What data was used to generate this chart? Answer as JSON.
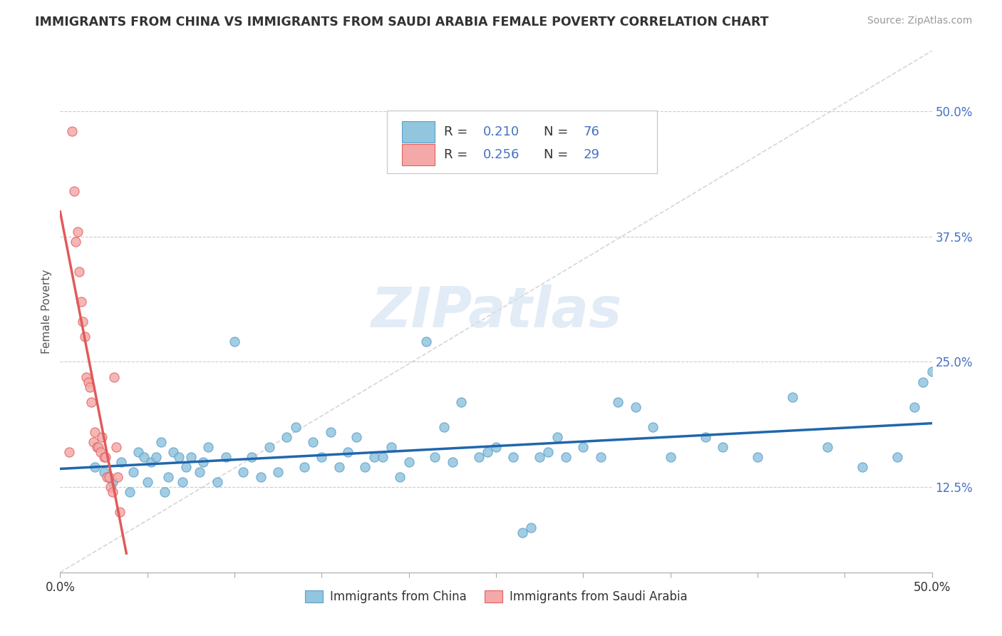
{
  "title": "IMMIGRANTS FROM CHINA VS IMMIGRANTS FROM SAUDI ARABIA FEMALE POVERTY CORRELATION CHART",
  "source": "Source: ZipAtlas.com",
  "ylabel": "Female Poverty",
  "y_tick_labels": [
    "12.5%",
    "25.0%",
    "37.5%",
    "50.0%"
  ],
  "y_tick_values": [
    0.125,
    0.25,
    0.375,
    0.5
  ],
  "x_min": 0.0,
  "x_max": 0.5,
  "y_min": 0.04,
  "y_max": 0.56,
  "china_color": "#92c5de",
  "china_edge_color": "#5a9ec9",
  "saudi_color": "#f4a9a8",
  "saudi_edge_color": "#e06060",
  "trend_china_color": "#2166ac",
  "trend_saudi_color": "#e05a5a",
  "ref_line_color": "#cccccc",
  "R_china": 0.21,
  "N_china": 76,
  "R_saudi": 0.256,
  "N_saudi": 29,
  "legend_label_china": "Immigrants from China",
  "legend_label_saudi": "Immigrants from Saudi Arabia",
  "watermark": "ZIPatlas",
  "china_x": [
    0.02,
    0.025,
    0.03,
    0.035,
    0.04,
    0.042,
    0.045,
    0.048,
    0.05,
    0.052,
    0.055,
    0.058,
    0.06,
    0.062,
    0.065,
    0.068,
    0.07,
    0.072,
    0.075,
    0.08,
    0.082,
    0.085,
    0.09,
    0.095,
    0.1,
    0.105,
    0.11,
    0.115,
    0.12,
    0.125,
    0.13,
    0.135,
    0.14,
    0.145,
    0.15,
    0.155,
    0.16,
    0.165,
    0.17,
    0.175,
    0.18,
    0.185,
    0.19,
    0.195,
    0.2,
    0.21,
    0.215,
    0.22,
    0.225,
    0.23,
    0.24,
    0.245,
    0.25,
    0.26,
    0.265,
    0.27,
    0.275,
    0.28,
    0.285,
    0.29,
    0.3,
    0.31,
    0.32,
    0.33,
    0.34,
    0.35,
    0.37,
    0.38,
    0.4,
    0.42,
    0.44,
    0.46,
    0.48,
    0.49,
    0.495,
    0.5
  ],
  "china_y": [
    0.145,
    0.14,
    0.13,
    0.15,
    0.12,
    0.14,
    0.16,
    0.155,
    0.13,
    0.15,
    0.155,
    0.17,
    0.12,
    0.135,
    0.16,
    0.155,
    0.13,
    0.145,
    0.155,
    0.14,
    0.15,
    0.165,
    0.13,
    0.155,
    0.27,
    0.14,
    0.155,
    0.135,
    0.165,
    0.14,
    0.175,
    0.185,
    0.145,
    0.17,
    0.155,
    0.18,
    0.145,
    0.16,
    0.175,
    0.145,
    0.155,
    0.155,
    0.165,
    0.135,
    0.15,
    0.27,
    0.155,
    0.185,
    0.15,
    0.21,
    0.155,
    0.16,
    0.165,
    0.155,
    0.08,
    0.085,
    0.155,
    0.16,
    0.175,
    0.155,
    0.165,
    0.155,
    0.21,
    0.205,
    0.185,
    0.155,
    0.175,
    0.165,
    0.155,
    0.215,
    0.165,
    0.145,
    0.155,
    0.205,
    0.23,
    0.24
  ],
  "saudi_x": [
    0.005,
    0.007,
    0.008,
    0.009,
    0.01,
    0.011,
    0.012,
    0.013,
    0.014,
    0.015,
    0.016,
    0.017,
    0.018,
    0.019,
    0.02,
    0.021,
    0.022,
    0.023,
    0.024,
    0.025,
    0.026,
    0.027,
    0.028,
    0.029,
    0.03,
    0.031,
    0.032,
    0.033,
    0.034
  ],
  "saudi_y": [
    0.16,
    0.48,
    0.42,
    0.37,
    0.38,
    0.34,
    0.31,
    0.29,
    0.275,
    0.235,
    0.23,
    0.225,
    0.21,
    0.17,
    0.18,
    0.165,
    0.165,
    0.16,
    0.175,
    0.155,
    0.155,
    0.135,
    0.135,
    0.125,
    0.12,
    0.235,
    0.165,
    0.135,
    0.1
  ]
}
